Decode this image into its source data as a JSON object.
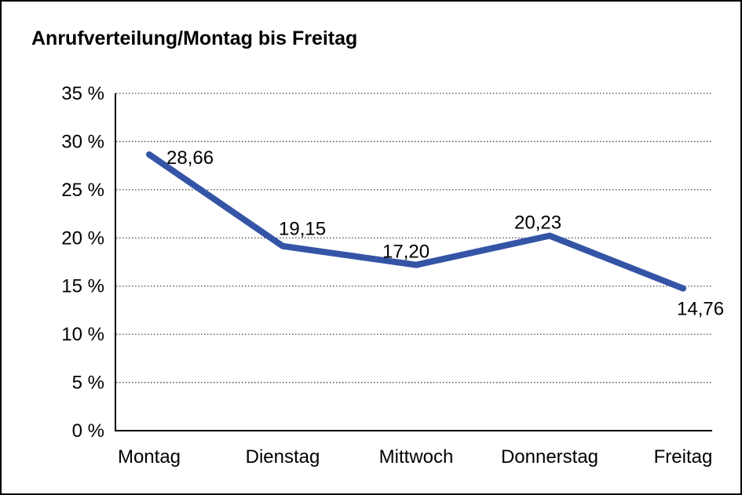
{
  "window": {
    "title": "Anrufverteilung/Montag bis Freitag"
  },
  "chart_data": {
    "type": "line",
    "title": "Anrufverteilung/Montag bis Freitag",
    "categories": [
      "Montag",
      "Dienstag",
      "Mittwoch",
      "Donnerstag",
      "Freitag"
    ],
    "values": [
      28.66,
      19.15,
      17.2,
      20.23,
      14.76
    ],
    "point_labels": [
      "28,66",
      "19,15",
      "17,20",
      "20,23",
      "14,76"
    ],
    "y_tick_labels": [
      "0 %",
      "5 %",
      "10 %",
      "15 %",
      "20 %",
      "25 %",
      "30 %",
      "35 %"
    ],
    "ylim": [
      0,
      35
    ],
    "y_step": 5,
    "xlabel": "",
    "ylabel": "",
    "legend": "none",
    "grid": "horizontal-dotted",
    "decimal_separator": ",",
    "colors": {
      "line": "#3454A6",
      "axis": "#000000",
      "gridline": "#444444",
      "text": "#000000",
      "background": "#ffffff"
    }
  }
}
